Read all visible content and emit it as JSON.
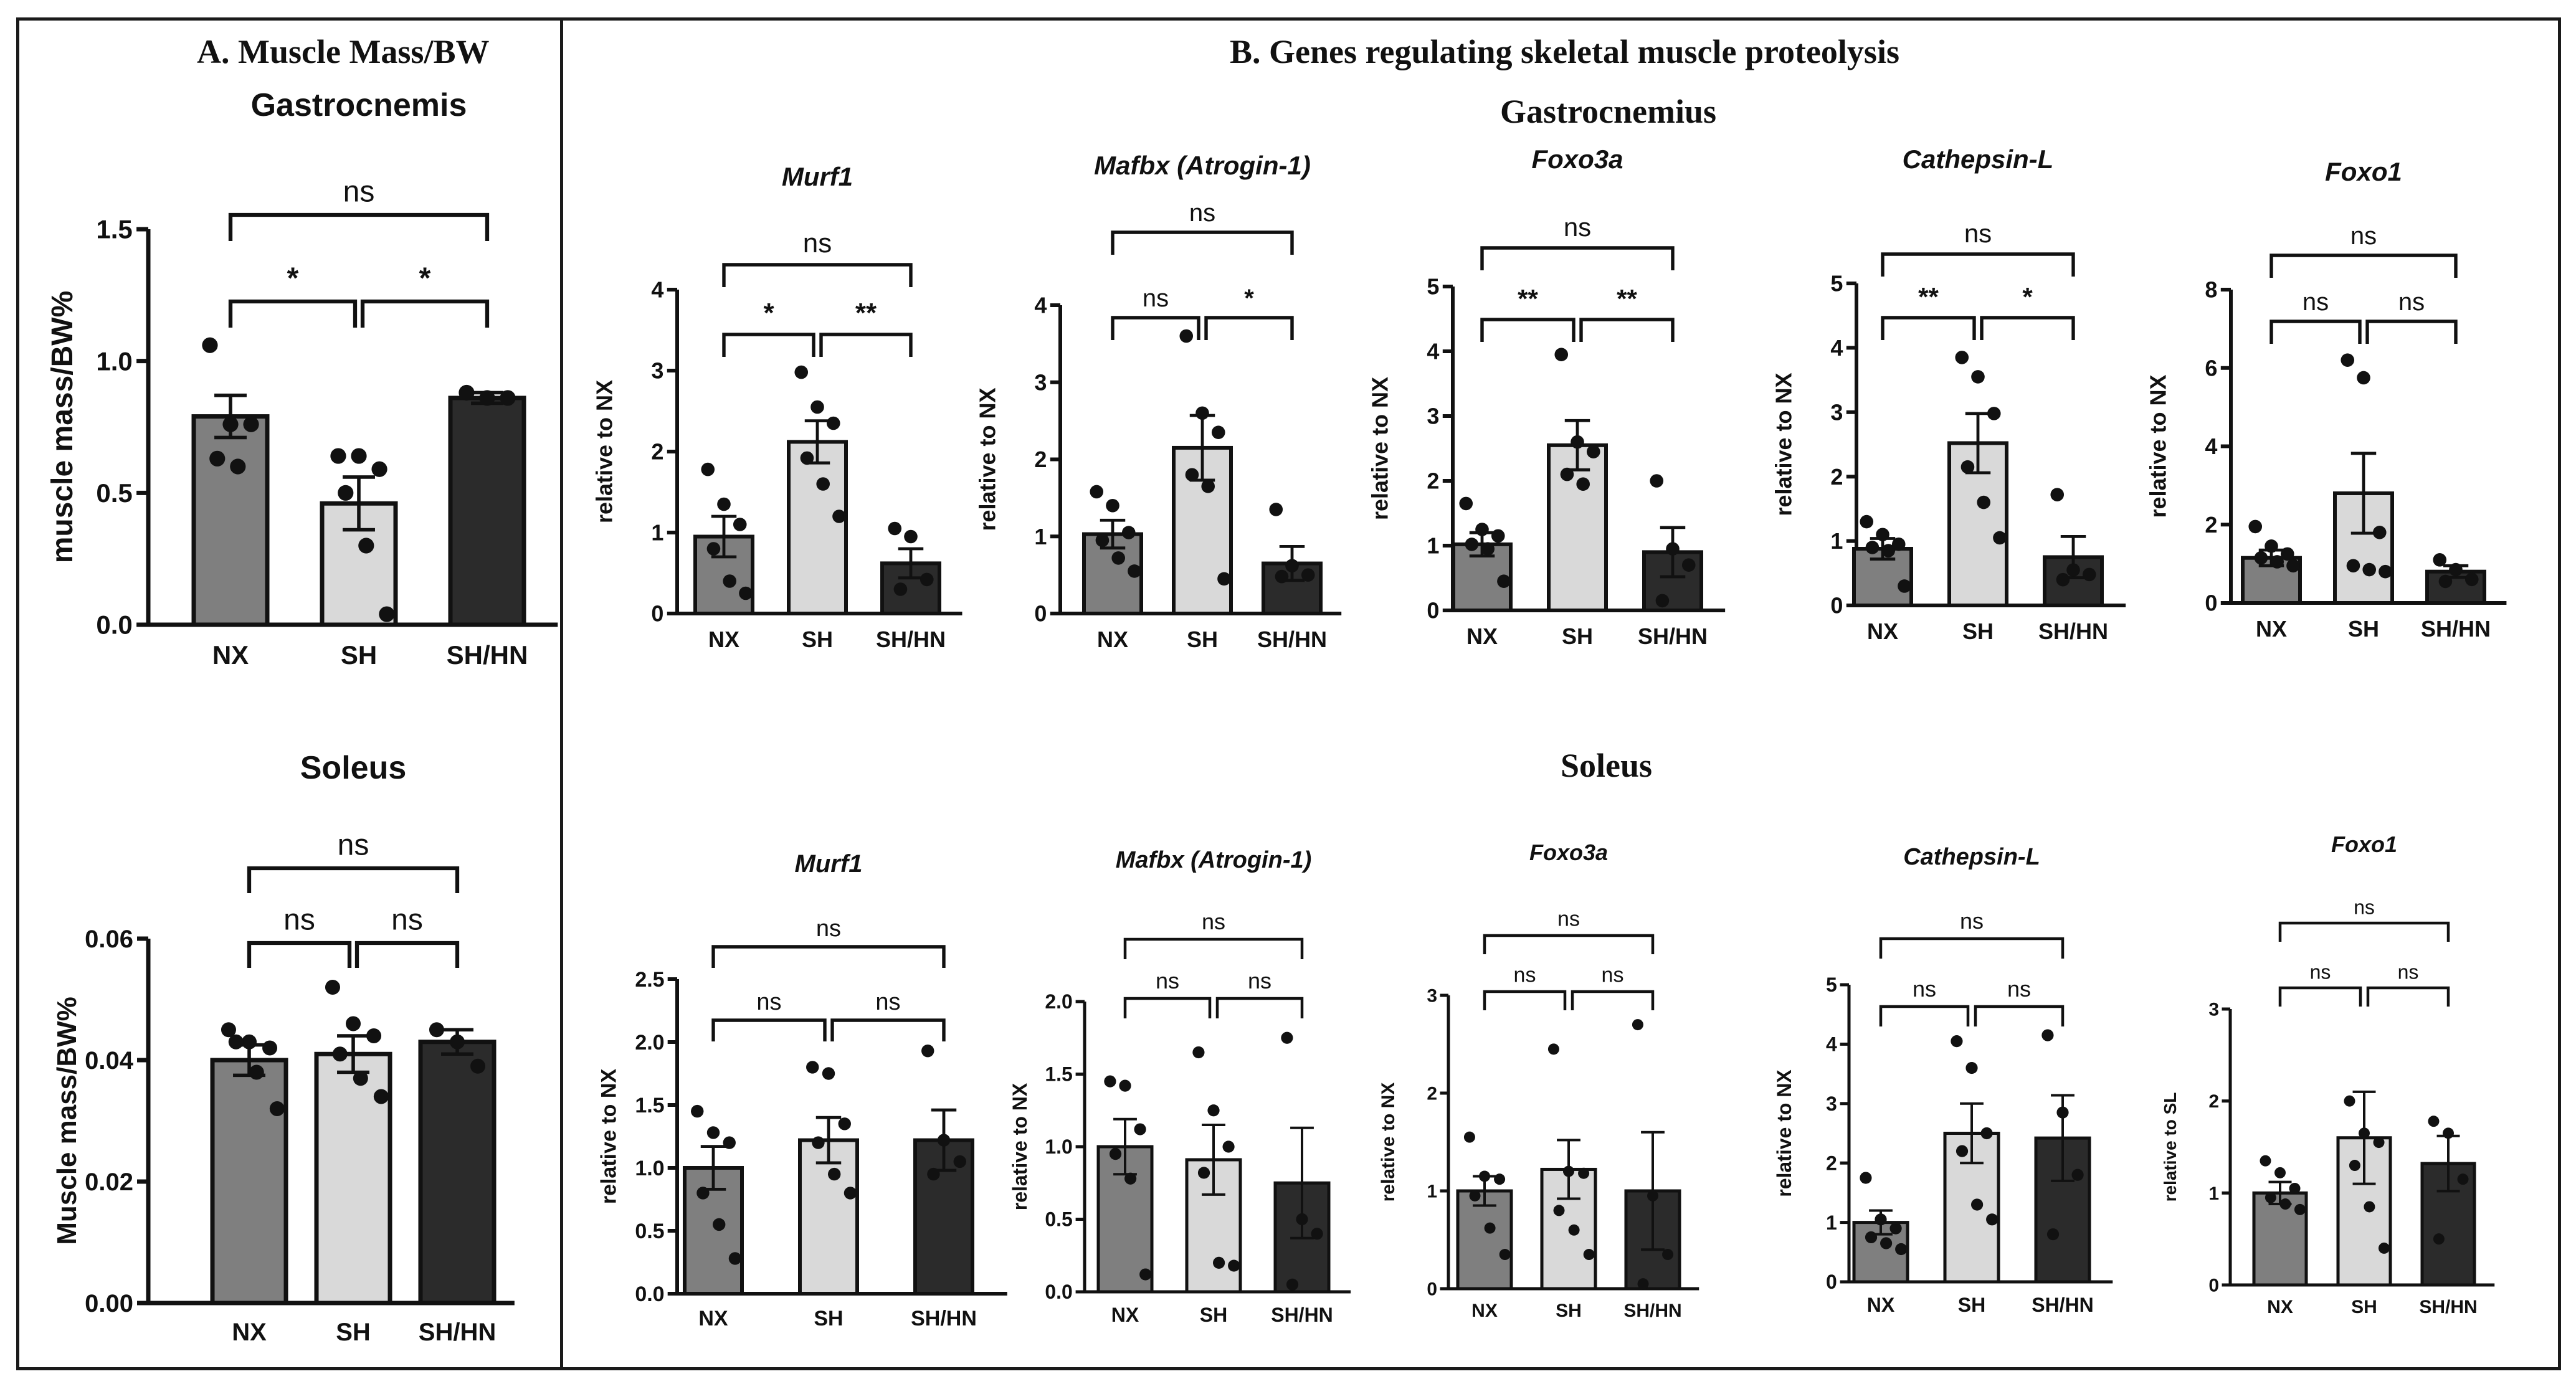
{
  "panel_a_title": "A. Muscle Mass/BW",
  "panel_b_title": "B. Genes regulating skeletal muscle proteolysis",
  "section_gastro": "Gastrocnemius",
  "section_soleus": "Soleus",
  "colors": {
    "NX": "#7f7f7f",
    "SH": "#d9d9d9",
    "SHHN": "#2b2b2b",
    "axis": "#111111",
    "frame": "#1a1a1a"
  },
  "chart_data": [
    {
      "id": "a-gastro",
      "type": "bar",
      "title": "Gastrocnemis",
      "ylabel": "muscle mass/BW%",
      "ylim": [
        0,
        1.5
      ],
      "yticks": [
        "0.0",
        "0.5",
        "1.0",
        "1.5"
      ],
      "categories": [
        "NX",
        "SH",
        "SH/HN"
      ],
      "values": [
        0.79,
        0.46,
        0.86
      ],
      "errors": [
        0.08,
        0.1,
        0.02
      ],
      "points": [
        [
          1.06,
          0.76,
          0.76,
          0.63,
          0.6
        ],
        [
          0.64,
          0.64,
          0.59,
          0.5,
          0.3,
          0.04
        ],
        [
          0.88,
          0.86,
          0.86
        ]
      ],
      "brackets": [
        {
          "from": 0,
          "to": 1,
          "label": "*",
          "level": 1
        },
        {
          "from": 1,
          "to": 2,
          "label": "*",
          "level": 1
        },
        {
          "from": 0,
          "to": 2,
          "label": "ns",
          "level": 2
        }
      ]
    },
    {
      "id": "a-soleus",
      "type": "bar",
      "title": "Soleus",
      "ylabel": "Muscle mass/BW%",
      "ylim": [
        0,
        0.06
      ],
      "yticks": [
        "0.00",
        "0.02",
        "0.04",
        "0.06"
      ],
      "categories": [
        "NX",
        "SH",
        "SH/HN"
      ],
      "values": [
        0.04,
        0.041,
        0.043
      ],
      "errors": [
        0.0025,
        0.003,
        0.002
      ],
      "points": [
        [
          0.045,
          0.043,
          0.042,
          0.043,
          0.038,
          0.032
        ],
        [
          0.052,
          0.046,
          0.044,
          0.041,
          0.037,
          0.034
        ],
        [
          0.045,
          0.043,
          0.039
        ]
      ],
      "brackets": [
        {
          "from": 0,
          "to": 1,
          "label": "ns",
          "level": 1
        },
        {
          "from": 1,
          "to": 2,
          "label": "ns",
          "level": 1
        },
        {
          "from": 0,
          "to": 2,
          "label": "ns",
          "level": 2
        }
      ]
    },
    {
      "id": "g-murf1",
      "type": "bar",
      "title": "Murf1",
      "ylabel": "relative to NX",
      "ylim": [
        0,
        4
      ],
      "yticks": [
        "0",
        "1",
        "2",
        "3",
        "4"
      ],
      "categories": [
        "NX",
        "SH",
        "SH/HN"
      ],
      "values": [
        0.95,
        2.12,
        0.62
      ],
      "errors": [
        0.25,
        0.26,
        0.18
      ],
      "points": [
        [
          1.78,
          1.35,
          1.1,
          0.8,
          0.4,
          0.25
        ],
        [
          2.98,
          2.55,
          2.35,
          1.92,
          1.6,
          1.2
        ],
        [
          1.05,
          0.95,
          0.42,
          0.3
        ]
      ],
      "brackets": [
        {
          "from": 0,
          "to": 1,
          "label": "*",
          "level": 1
        },
        {
          "from": 1,
          "to": 2,
          "label": "**",
          "level": 1
        },
        {
          "from": 0,
          "to": 2,
          "label": "ns",
          "level": 2
        }
      ]
    },
    {
      "id": "g-mafbx",
      "type": "bar",
      "title": "Mafbx (Atrogin-1)",
      "ylabel": "relative to NX",
      "ylim": [
        0,
        4
      ],
      "yticks": [
        "0",
        "1",
        "2",
        "3",
        "4"
      ],
      "categories": [
        "NX",
        "SH",
        "SH/HN"
      ],
      "values": [
        1.03,
        2.15,
        0.65
      ],
      "errors": [
        0.18,
        0.42,
        0.22
      ],
      "points": [
        [
          1.58,
          1.4,
          1.05,
          0.95,
          0.72,
          0.55
        ],
        [
          3.6,
          2.6,
          2.35,
          1.8,
          1.65,
          0.45
        ],
        [
          1.35,
          0.62,
          0.5,
          0.48
        ]
      ],
      "brackets": [
        {
          "from": 0,
          "to": 1,
          "label": "ns",
          "level": 1
        },
        {
          "from": 1,
          "to": 2,
          "label": "*",
          "level": 1
        },
        {
          "from": 0,
          "to": 2,
          "label": "ns",
          "level": 2
        }
      ]
    },
    {
      "id": "g-foxo3a",
      "type": "bar",
      "title": "Foxo3a",
      "ylabel": "relative to NX",
      "ylim": [
        0,
        5
      ],
      "yticks": [
        "0",
        "1",
        "2",
        "3",
        "4",
        "5"
      ],
      "categories": [
        "NX",
        "SH",
        "SH/HN"
      ],
      "values": [
        1.02,
        2.55,
        0.9
      ],
      "errors": [
        0.18,
        0.38,
        0.38
      ],
      "points": [
        [
          1.65,
          1.25,
          1.15,
          1.02,
          0.95,
          0.45
        ],
        [
          3.95,
          2.6,
          2.45,
          2.1,
          1.95
        ],
        [
          2.0,
          0.95,
          0.7,
          0.15
        ]
      ],
      "brackets": [
        {
          "from": 0,
          "to": 1,
          "label": "**",
          "level": 1
        },
        {
          "from": 1,
          "to": 2,
          "label": "**",
          "level": 1
        },
        {
          "from": 0,
          "to": 2,
          "label": "ns",
          "level": 2
        }
      ]
    },
    {
      "id": "g-cathepsin",
      "type": "bar",
      "title": "Cathepsin-L",
      "ylabel": "relative to NX",
      "ylim": [
        0,
        5
      ],
      "yticks": [
        "0",
        "1",
        "2",
        "3",
        "4",
        "5"
      ],
      "categories": [
        "NX",
        "SH",
        "SH/HN"
      ],
      "values": [
        0.88,
        2.52,
        0.75
      ],
      "errors": [
        0.16,
        0.46,
        0.32
      ],
      "points": [
        [
          1.3,
          1.1,
          0.95,
          0.9,
          0.85,
          0.3
        ],
        [
          3.85,
          3.55,
          2.98,
          2.15,
          1.6,
          1.05
        ],
        [
          1.72,
          0.55,
          0.48,
          0.4
        ]
      ],
      "brackets": [
        {
          "from": 0,
          "to": 1,
          "label": "**",
          "level": 1
        },
        {
          "from": 1,
          "to": 2,
          "label": "*",
          "level": 1
        },
        {
          "from": 0,
          "to": 2,
          "label": "ns",
          "level": 2
        }
      ]
    },
    {
      "id": "g-foxo1",
      "type": "bar",
      "title": "Foxo1",
      "ylabel": "relative to NX",
      "ylim": [
        0,
        8
      ],
      "yticks": [
        "0",
        "2",
        "4",
        "6",
        "8"
      ],
      "categories": [
        "NX",
        "SH",
        "SH/HN"
      ],
      "values": [
        1.15,
        2.8,
        0.8
      ],
      "errors": [
        0.2,
        1.02,
        0.15
      ],
      "points": [
        [
          1.95,
          1.45,
          1.25,
          1.15,
          1.05,
          0.95
        ],
        [
          6.2,
          5.75,
          1.8,
          0.95,
          0.85,
          0.8
        ],
        [
          1.1,
          0.85,
          0.6,
          0.55
        ]
      ],
      "brackets": [
        {
          "from": 0,
          "to": 1,
          "label": "ns",
          "level": 1
        },
        {
          "from": 1,
          "to": 2,
          "label": "ns",
          "level": 1
        },
        {
          "from": 0,
          "to": 2,
          "label": "ns",
          "level": 2
        }
      ]
    },
    {
      "id": "s-murf1",
      "type": "bar",
      "title": "Murf1",
      "ylabel": "relative to NX",
      "ylim": [
        0,
        2.5
      ],
      "yticks": [
        "0.0",
        "0.5",
        "1.0",
        "1.5",
        "2.0",
        "2.5"
      ],
      "categories": [
        "NX",
        "SH",
        "SH/HN"
      ],
      "values": [
        1.0,
        1.22,
        1.22
      ],
      "errors": [
        0.17,
        0.18,
        0.24
      ],
      "points": [
        [
          1.45,
          1.28,
          1.2,
          0.8,
          0.55,
          0.28
        ],
        [
          1.8,
          1.75,
          1.35,
          1.2,
          0.95,
          0.8
        ],
        [
          1.93,
          1.22,
          1.05,
          0.95
        ]
      ],
      "brackets": [
        {
          "from": 0,
          "to": 1,
          "label": "ns",
          "level": 1
        },
        {
          "from": 1,
          "to": 2,
          "label": "ns",
          "level": 1
        },
        {
          "from": 0,
          "to": 2,
          "label": "ns",
          "level": 2
        }
      ]
    },
    {
      "id": "s-mafbx",
      "type": "bar",
      "title": "Mafbx (Atrogin-1)",
      "ylabel": "relative to NX",
      "ylim": [
        0,
        2.0
      ],
      "yticks": [
        "0.0",
        "0.5",
        "1.0",
        "1.5",
        "2.0"
      ],
      "categories": [
        "NX",
        "SH",
        "SH/HN"
      ],
      "values": [
        1.0,
        0.91,
        0.75
      ],
      "errors": [
        0.19,
        0.24,
        0.38
      ],
      "points": [
        [
          1.45,
          1.42,
          1.12,
          0.95,
          0.78,
          0.12
        ],
        [
          1.65,
          1.25,
          1.0,
          0.82,
          0.2,
          0.18
        ],
        [
          1.75,
          0.5,
          0.4,
          0.05
        ]
      ],
      "brackets": [
        {
          "from": 0,
          "to": 1,
          "label": "ns",
          "level": 1
        },
        {
          "from": 1,
          "to": 2,
          "label": "ns",
          "level": 1
        },
        {
          "from": 0,
          "to": 2,
          "label": "ns",
          "level": 2
        }
      ]
    },
    {
      "id": "s-foxo3a",
      "type": "bar",
      "title": "Foxo3a",
      "ylabel": "relative to NX",
      "ylim": [
        0,
        3
      ],
      "yticks": [
        "0",
        "1",
        "2",
        "3"
      ],
      "categories": [
        "NX",
        "SH",
        "SH/HN"
      ],
      "values": [
        1.0,
        1.22,
        1.0
      ],
      "errors": [
        0.15,
        0.3,
        0.6
      ],
      "points": [
        [
          1.55,
          1.15,
          1.12,
          0.95,
          0.62,
          0.35
        ],
        [
          2.45,
          1.2,
          1.18,
          0.8,
          0.6,
          0.35
        ],
        [
          2.7,
          0.95,
          0.35,
          0.05
        ]
      ],
      "brackets": [
        {
          "from": 0,
          "to": 1,
          "label": "ns",
          "level": 1
        },
        {
          "from": 1,
          "to": 2,
          "label": "ns",
          "level": 1
        },
        {
          "from": 0,
          "to": 2,
          "label": "ns",
          "level": 2
        }
      ]
    },
    {
      "id": "s-cathepsin",
      "type": "bar",
      "title": "Cathepsin-L",
      "ylabel": "relative to NX",
      "ylim": [
        0,
        5
      ],
      "yticks": [
        "0",
        "1",
        "2",
        "3",
        "4",
        "5"
      ],
      "categories": [
        "NX",
        "SH",
        "SH/HN"
      ],
      "values": [
        1.0,
        2.5,
        2.42
      ],
      "errors": [
        0.2,
        0.5,
        0.72
      ],
      "points": [
        [
          1.75,
          1.05,
          0.9,
          0.75,
          0.65,
          0.55
        ],
        [
          4.05,
          3.6,
          2.5,
          2.2,
          1.3,
          1.05
        ],
        [
          4.15,
          2.85,
          1.8,
          0.8
        ]
      ],
      "brackets": [
        {
          "from": 0,
          "to": 1,
          "label": "ns",
          "level": 1
        },
        {
          "from": 1,
          "to": 2,
          "label": "ns",
          "level": 1
        },
        {
          "from": 0,
          "to": 2,
          "label": "ns",
          "level": 2
        }
      ]
    },
    {
      "id": "s-foxo1",
      "type": "bar",
      "title": "Foxo1",
      "ylabel": "relative to SL",
      "ylim": [
        0,
        3
      ],
      "yticks": [
        "0",
        "1",
        "2",
        "3"
      ],
      "categories": [
        "NX",
        "SH",
        "SH/HN"
      ],
      "values": [
        1.0,
        1.6,
        1.32
      ],
      "errors": [
        0.12,
        0.5,
        0.3
      ],
      "points": [
        [
          1.35,
          1.22,
          1.05,
          0.95,
          0.88,
          0.82
        ],
        [
          2.0,
          1.65,
          1.55,
          1.3,
          0.85,
          0.4
        ],
        [
          1.78,
          1.65,
          1.15,
          0.5
        ]
      ],
      "brackets": [
        {
          "from": 0,
          "to": 1,
          "label": "ns",
          "level": 1
        },
        {
          "from": 1,
          "to": 2,
          "label": "ns",
          "level": 1
        },
        {
          "from": 0,
          "to": 2,
          "label": "ns",
          "level": 2
        }
      ]
    }
  ]
}
